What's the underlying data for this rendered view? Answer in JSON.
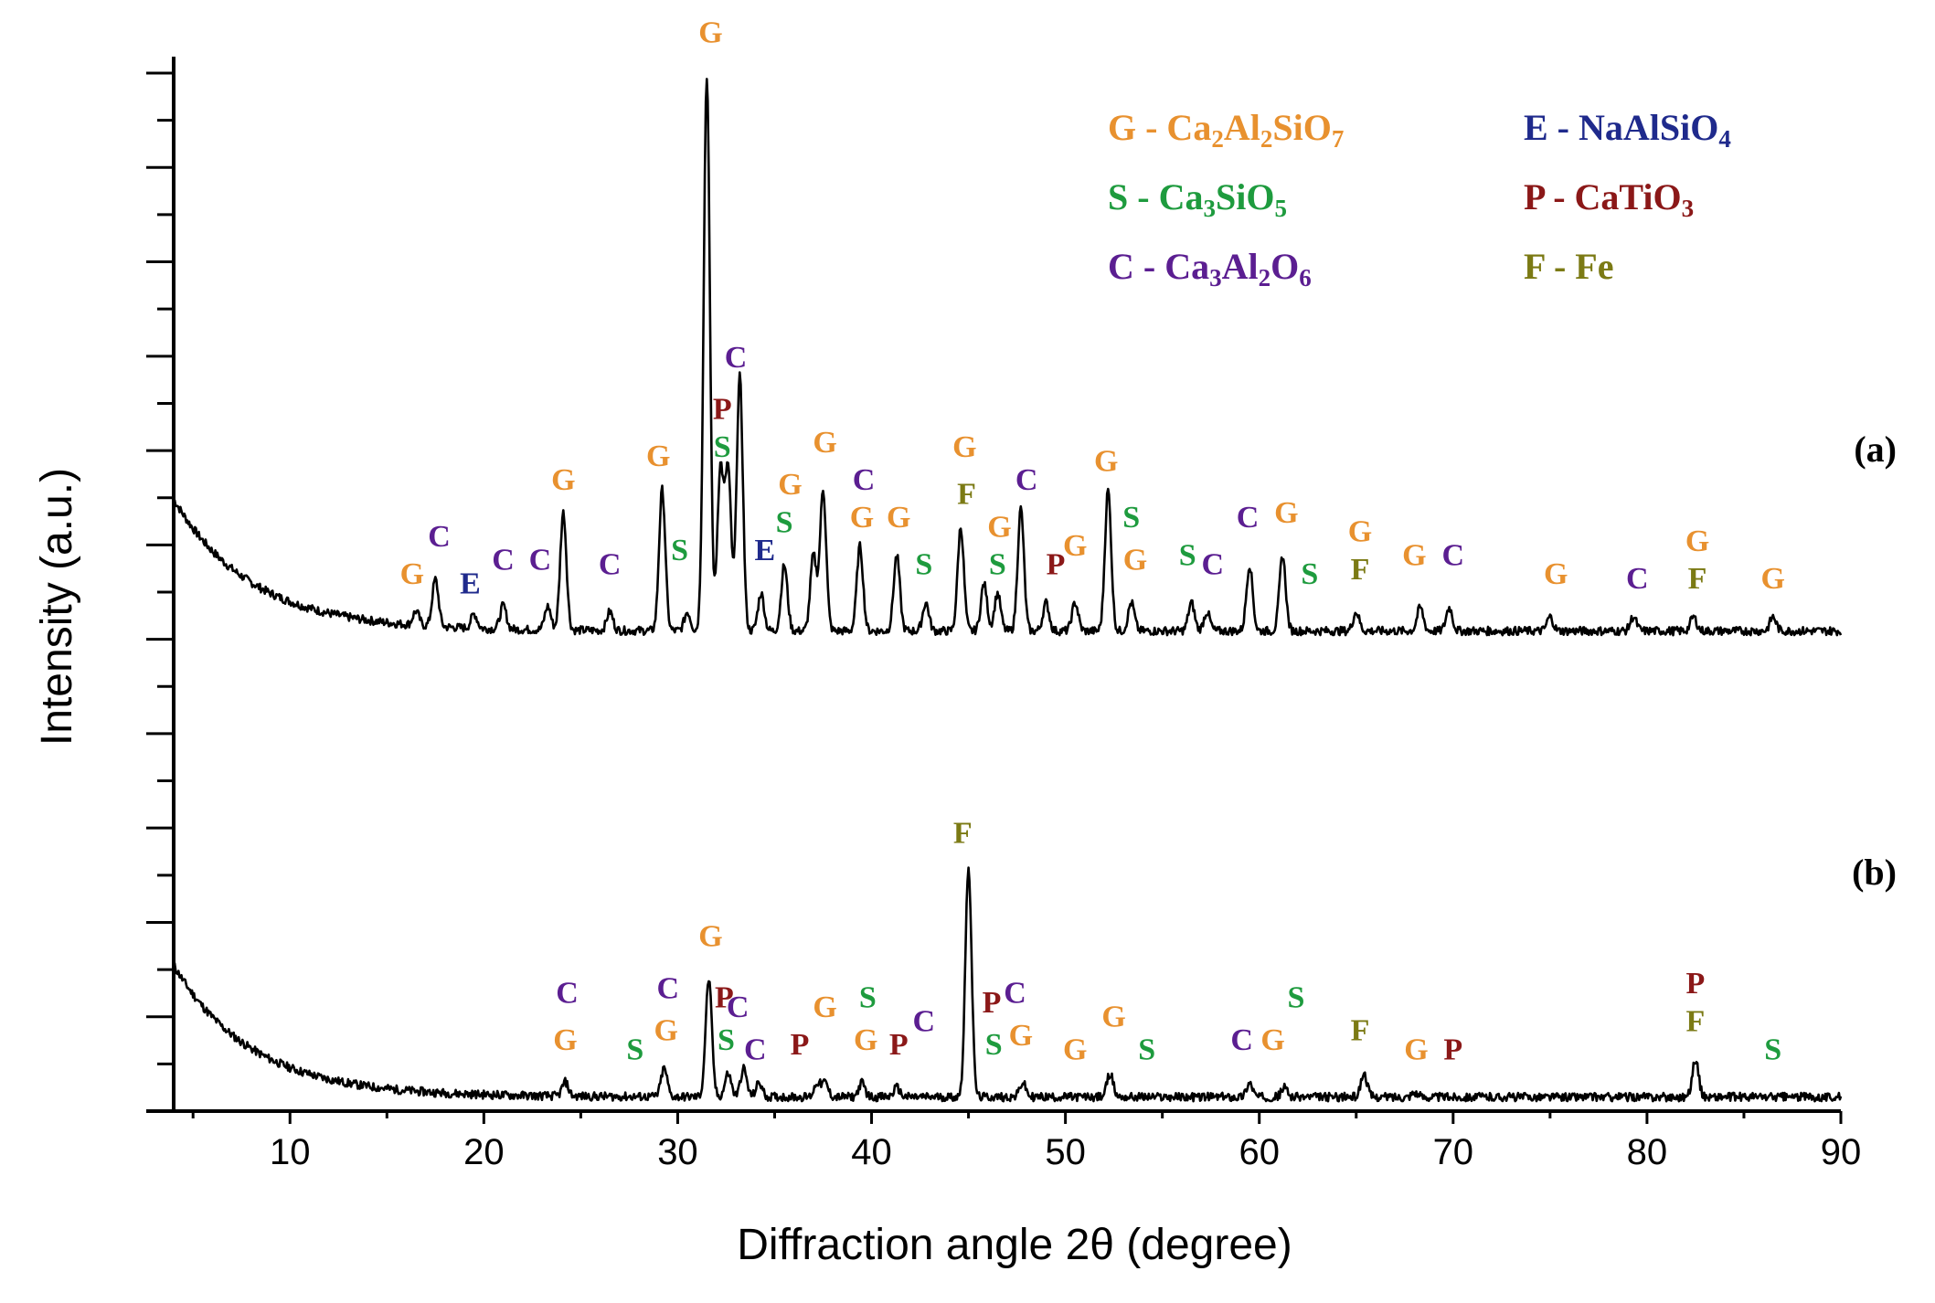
{
  "colors": {
    "G": "#E8912F",
    "S": "#1E9B3E",
    "C": "#5B1E91",
    "E": "#1F2A8C",
    "P": "#8B1818",
    "F": "#7B7A14"
  },
  "chart_data": {
    "type": "line",
    "title": "",
    "xlabel": "Diffraction angle 2θ (degree)",
    "ylabel": "Intensity (a.u.)",
    "xlim": [
      4,
      90
    ],
    "ylim": [
      0,
      112
    ],
    "x_ticks": [
      10,
      20,
      30,
      40,
      50,
      60,
      70,
      80,
      90
    ],
    "y_ticks_count": 23,
    "legend": [
      {
        "letter": "G",
        "formula": "G - Ca2Al2SiO7",
        "parts": [
          "G - Ca",
          "2",
          "Al",
          "2",
          "SiO",
          "7"
        ]
      },
      {
        "letter": "E",
        "formula": "E - NaAlSiO4",
        "parts": [
          "E - NaAlSiO",
          "4"
        ]
      },
      {
        "letter": "S",
        "formula": "S - Ca3SiO5",
        "parts": [
          "S - Ca",
          "3",
          "SiO",
          "5"
        ]
      },
      {
        "letter": "P",
        "formula": "P - CaTiO3",
        "parts": [
          "P - CaTiO",
          "3"
        ]
      },
      {
        "letter": "C",
        "formula": "C - Ca3Al2O6",
        "parts": [
          "C - Ca",
          "3",
          "Al",
          "2",
          "O",
          "6"
        ]
      },
      {
        "letter": "F",
        "formula": "F - Fe",
        "parts": [
          "F - Fe"
        ]
      }
    ],
    "series": [
      {
        "name": "(a)",
        "baseline": 51,
        "background": {
          "amplitude": 14,
          "decay": 4
        },
        "noise": 0.45,
        "seed": 7,
        "peaks": [
          {
            "x": 16.5,
            "h": 1.5
          },
          {
            "x": 17.5,
            "h": 5
          },
          {
            "x": 19.5,
            "h": 1.5
          },
          {
            "x": 21.0,
            "h": 2.5
          },
          {
            "x": 23.3,
            "h": 2.5
          },
          {
            "x": 24.1,
            "h": 12.5
          },
          {
            "x": 26.5,
            "h": 2
          },
          {
            "x": 29.2,
            "h": 15
          },
          {
            "x": 30.5,
            "h": 2
          },
          {
            "x": 31.5,
            "h": 59
          },
          {
            "x": 32.2,
            "h": 17
          },
          {
            "x": 32.6,
            "h": 17
          },
          {
            "x": 33.2,
            "h": 27
          },
          {
            "x": 34.3,
            "h": 4
          },
          {
            "x": 35.5,
            "h": 7
          },
          {
            "x": 37.0,
            "h": 8
          },
          {
            "x": 37.5,
            "h": 15
          },
          {
            "x": 39.4,
            "h": 9
          },
          {
            "x": 41.3,
            "h": 8
          },
          {
            "x": 42.8,
            "h": 3
          },
          {
            "x": 44.6,
            "h": 11
          },
          {
            "x": 45.8,
            "h": 5
          },
          {
            "x": 46.5,
            "h": 4
          },
          {
            "x": 47.7,
            "h": 13
          },
          {
            "x": 49.0,
            "h": 3
          },
          {
            "x": 50.5,
            "h": 3
          },
          {
            "x": 52.2,
            "h": 15
          },
          {
            "x": 53.4,
            "h": 3
          },
          {
            "x": 56.5,
            "h": 3
          },
          {
            "x": 57.3,
            "h": 2
          },
          {
            "x": 59.5,
            "h": 7
          },
          {
            "x": 61.2,
            "h": 8
          },
          {
            "x": 65.0,
            "h": 2
          },
          {
            "x": 68.3,
            "h": 2.5
          },
          {
            "x": 69.8,
            "h": 2.5
          },
          {
            "x": 75.0,
            "h": 1.5
          },
          {
            "x": 79.3,
            "h": 1.5
          },
          {
            "x": 82.4,
            "h": 1.5
          },
          {
            "x": 86.5,
            "h": 1.5
          }
        ],
        "annotations": [
          {
            "text": "G",
            "x": 16.3,
            "y": 56
          },
          {
            "text": "C",
            "x": 17.7,
            "y": 60
          },
          {
            "text": "E",
            "x": 19.3,
            "y": 55
          },
          {
            "text": "C",
            "x": 21.0,
            "y": 57.5
          },
          {
            "text": "C",
            "x": 22.9,
            "y": 57.5
          },
          {
            "text": "G",
            "x": 24.1,
            "y": 66
          },
          {
            "text": "C",
            "x": 26.5,
            "y": 57
          },
          {
            "text": "S",
            "x": 30.1,
            "y": 58.5
          },
          {
            "text": "G",
            "x": 29.0,
            "y": 68.5
          },
          {
            "text": "G",
            "x": 31.7,
            "y": 113.5
          },
          {
            "text": "C",
            "x": 33.0,
            "y": 79
          },
          {
            "text": "P",
            "x": 32.3,
            "y": 73.5
          },
          {
            "text": "S",
            "x": 32.3,
            "y": 69.5
          },
          {
            "text": "E",
            "x": 34.5,
            "y": 58.5
          },
          {
            "text": "S",
            "x": 35.5,
            "y": 61.5
          },
          {
            "text": "G",
            "x": 35.8,
            "y": 65.5
          },
          {
            "text": "G",
            "x": 37.6,
            "y": 70
          },
          {
            "text": "C",
            "x": 39.6,
            "y": 66
          },
          {
            "text": "G",
            "x": 39.5,
            "y": 62
          },
          {
            "text": "G",
            "x": 41.4,
            "y": 62
          },
          {
            "text": "S",
            "x": 42.7,
            "y": 57
          },
          {
            "text": "G",
            "x": 44.8,
            "y": 69.5
          },
          {
            "text": "F",
            "x": 44.9,
            "y": 64.5
          },
          {
            "text": "G",
            "x": 46.6,
            "y": 61
          },
          {
            "text": "S",
            "x": 46.5,
            "y": 57
          },
          {
            "text": "C",
            "x": 48.0,
            "y": 66
          },
          {
            "text": "P",
            "x": 49.5,
            "y": 57
          },
          {
            "text": "G",
            "x": 50.5,
            "y": 59
          },
          {
            "text": "G",
            "x": 52.1,
            "y": 68
          },
          {
            "text": "S",
            "x": 53.4,
            "y": 62
          },
          {
            "text": "G",
            "x": 53.6,
            "y": 57.5
          },
          {
            "text": "S",
            "x": 56.3,
            "y": 58
          },
          {
            "text": "C",
            "x": 57.6,
            "y": 57
          },
          {
            "text": "C",
            "x": 59.4,
            "y": 62
          },
          {
            "text": "G",
            "x": 61.4,
            "y": 62.5
          },
          {
            "text": "S",
            "x": 62.6,
            "y": 56
          },
          {
            "text": "G",
            "x": 65.2,
            "y": 60.5
          },
          {
            "text": "F",
            "x": 65.2,
            "y": 56.5
          },
          {
            "text": "G",
            "x": 68.0,
            "y": 58
          },
          {
            "text": "C",
            "x": 70.0,
            "y": 58
          },
          {
            "text": "G",
            "x": 75.3,
            "y": 56
          },
          {
            "text": "C",
            "x": 79.5,
            "y": 55.5
          },
          {
            "text": "G",
            "x": 82.6,
            "y": 59.5
          },
          {
            "text": "F",
            "x": 82.6,
            "y": 55.5
          },
          {
            "text": "G",
            "x": 86.5,
            "y": 55.5
          }
        ]
      },
      {
        "name": "(b)",
        "baseline": 1.5,
        "background": {
          "amplitude": 14,
          "decay": 4
        },
        "noise": 0.45,
        "seed": 11,
        "peaks": [
          {
            "x": 24.2,
            "h": 1.5
          },
          {
            "x": 29.3,
            "h": 3
          },
          {
            "x": 31.6,
            "h": 12.5
          },
          {
            "x": 32.6,
            "h": 2.5
          },
          {
            "x": 33.4,
            "h": 3
          },
          {
            "x": 34.2,
            "h": 1.5
          },
          {
            "x": 37.2,
            "h": 1.5
          },
          {
            "x": 37.6,
            "h": 1.5
          },
          {
            "x": 39.5,
            "h": 1.5
          },
          {
            "x": 41.3,
            "h": 1
          },
          {
            "x": 45.0,
            "h": 24.5
          },
          {
            "x": 47.8,
            "h": 1.5
          },
          {
            "x": 52.3,
            "h": 2.5
          },
          {
            "x": 59.5,
            "h": 1.5
          },
          {
            "x": 61.3,
            "h": 1
          },
          {
            "x": 65.4,
            "h": 2.5
          },
          {
            "x": 68.0,
            "h": 0.5
          },
          {
            "x": 82.5,
            "h": 4
          }
        ],
        "annotations": [
          {
            "text": "C",
            "x": 24.3,
            "y": 11.5
          },
          {
            "text": "G",
            "x": 24.2,
            "y": 6.5
          },
          {
            "text": "S",
            "x": 27.8,
            "y": 5.5
          },
          {
            "text": "G",
            "x": 29.4,
            "y": 7.5
          },
          {
            "text": "C",
            "x": 29.5,
            "y": 12
          },
          {
            "text": "G",
            "x": 31.7,
            "y": 17.5
          },
          {
            "text": "P",
            "x": 32.4,
            "y": 11
          },
          {
            "text": "C",
            "x": 33.1,
            "y": 10
          },
          {
            "text": "S",
            "x": 32.5,
            "y": 6.5
          },
          {
            "text": "C",
            "x": 34.0,
            "y": 5.5
          },
          {
            "text": "P",
            "x": 36.3,
            "y": 6
          },
          {
            "text": "G",
            "x": 37.6,
            "y": 10
          },
          {
            "text": "S",
            "x": 39.8,
            "y": 11
          },
          {
            "text": "G",
            "x": 39.7,
            "y": 6.5
          },
          {
            "text": "P",
            "x": 41.4,
            "y": 6
          },
          {
            "text": "C",
            "x": 42.7,
            "y": 8.5
          },
          {
            "text": "F",
            "x": 44.7,
            "y": 28.5
          },
          {
            "text": "P",
            "x": 46.2,
            "y": 10.5
          },
          {
            "text": "C",
            "x": 47.4,
            "y": 11.5
          },
          {
            "text": "S",
            "x": 46.3,
            "y": 6
          },
          {
            "text": "G",
            "x": 47.7,
            "y": 7
          },
          {
            "text": "G",
            "x": 50.5,
            "y": 5.5
          },
          {
            "text": "G",
            "x": 52.5,
            "y": 9
          },
          {
            "text": "S",
            "x": 54.2,
            "y": 5.5
          },
          {
            "text": "C",
            "x": 59.1,
            "y": 6.5
          },
          {
            "text": "G",
            "x": 60.7,
            "y": 6.5
          },
          {
            "text": "S",
            "x": 61.9,
            "y": 11
          },
          {
            "text": "F",
            "x": 65.2,
            "y": 7.5
          },
          {
            "text": "G",
            "x": 68.1,
            "y": 5.5
          },
          {
            "text": "P",
            "x": 70.0,
            "y": 5.5
          },
          {
            "text": "P",
            "x": 82.5,
            "y": 12.5
          },
          {
            "text": "F",
            "x": 82.5,
            "y": 8.5
          },
          {
            "text": "S",
            "x": 86.5,
            "y": 5.5
          }
        ]
      }
    ]
  }
}
